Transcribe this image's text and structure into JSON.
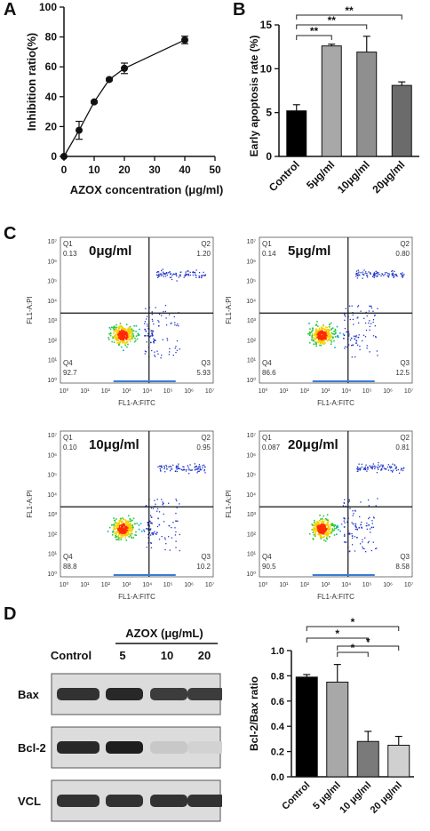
{
  "panel_letters": [
    "A",
    "B",
    "C",
    "D"
  ],
  "chart_data": [
    {
      "panel": "A",
      "type": "line",
      "xlabel": "AZOX concentration (μg/ml)",
      "ylabel": "Inhibition ratio(%)",
      "xlim": [
        0,
        50
      ],
      "ylim": [
        0,
        100
      ],
      "xticks": [
        0,
        10,
        20,
        30,
        40,
        50
      ],
      "yticks": [
        0,
        20,
        40,
        60,
        80,
        100
      ],
      "grid": false,
      "x": [
        0,
        5,
        10,
        15,
        20,
        40
      ],
      "y": [
        0,
        17.5,
        36.5,
        51.5,
        59,
        78
      ],
      "err": [
        0,
        6,
        0.8,
        0.8,
        3.5,
        2.5
      ]
    },
    {
      "panel": "B",
      "type": "bar",
      "ylabel": "Early apoptosis rate (%)",
      "ylim": [
        0,
        15
      ],
      "yticks": [
        0,
        5,
        10,
        15
      ],
      "categories": [
        "Control",
        "5μg/ml",
        "10μg/ml",
        "20μg/ml"
      ],
      "values": [
        5.2,
        12.6,
        11.9,
        8.1
      ],
      "err": [
        0.7,
        0.2,
        1.8,
        0.4
      ],
      "colors": [
        "#000000",
        "#a8a8a8",
        "#8f8f8f",
        "#6b6b6b"
      ],
      "significance": [
        {
          "from": 0,
          "to": 1,
          "label": "**"
        },
        {
          "from": 0,
          "to": 2,
          "label": "**"
        },
        {
          "from": 0,
          "to": 3,
          "label": "**"
        }
      ]
    },
    {
      "panel": "C",
      "type": "scatter",
      "xlabel": "FL1-A:FITC",
      "ylabel": "FL1-A:PI",
      "quadrant_labels": [
        "Q1",
        "Q2",
        "Q3",
        "Q4"
      ],
      "tick_labels": [
        "10⁰",
        "10²",
        "10⁴",
        "10⁶"
      ],
      "plots": [
        {
          "label": "0μg/ml",
          "q1": "0.13",
          "q2": "1.20",
          "q3": "5.93",
          "q4": "92.7"
        },
        {
          "label": "5μg/ml",
          "q1": "0.14",
          "q2": "0.80",
          "q3": "12.5",
          "q4": "86.6"
        },
        {
          "label": "10μg/ml",
          "q1": "0.10",
          "q2": "0.95",
          "q3": "10.2",
          "q4": "88.8"
        },
        {
          "label": "20μg/ml",
          "q1": "0.087",
          "q2": "0.81",
          "q3": "8.58",
          "q4": "90.5"
        }
      ]
    },
    {
      "panel": "D",
      "type": "bar",
      "ylabel": "Bcl-2/Bax ratio",
      "ylim": [
        0,
        1.0
      ],
      "yticks": [
        "0.0",
        "0.2",
        "0.4",
        "0.6",
        "0.8",
        "1.0"
      ],
      "categories": [
        "Control",
        "5 μg/ml",
        "10 μg/ml",
        "20 μg/ml"
      ],
      "values": [
        0.79,
        0.75,
        0.28,
        0.25
      ],
      "err": [
        0.02,
        0.14,
        0.08,
        0.07
      ],
      "colors": [
        "#000000",
        "#a8a8a8",
        "#7a7a7a",
        "#d0d0d0"
      ],
      "significance": [
        {
          "from": 0,
          "to": 3,
          "label": "*"
        },
        {
          "from": 0,
          "to": 2,
          "label": "*"
        },
        {
          "from": 1,
          "to": 2,
          "label": "*"
        },
        {
          "from": 1,
          "to": 3,
          "label": "*"
        }
      ]
    }
  ],
  "western_blot": {
    "treatment_label": "AZOX (μg/mL)",
    "lanes": [
      "Control",
      "5",
      "10",
      "20"
    ],
    "rows": [
      {
        "protein": "Bax",
        "intensity": [
          0.9,
          0.95,
          0.85,
          0.85
        ]
      },
      {
        "protein": "Bcl-2",
        "intensity": [
          0.95,
          1.0,
          0.15,
          0.1
        ]
      },
      {
        "protein": "VCL",
        "intensity": [
          0.9,
          0.9,
          0.9,
          0.9
        ]
      }
    ]
  }
}
